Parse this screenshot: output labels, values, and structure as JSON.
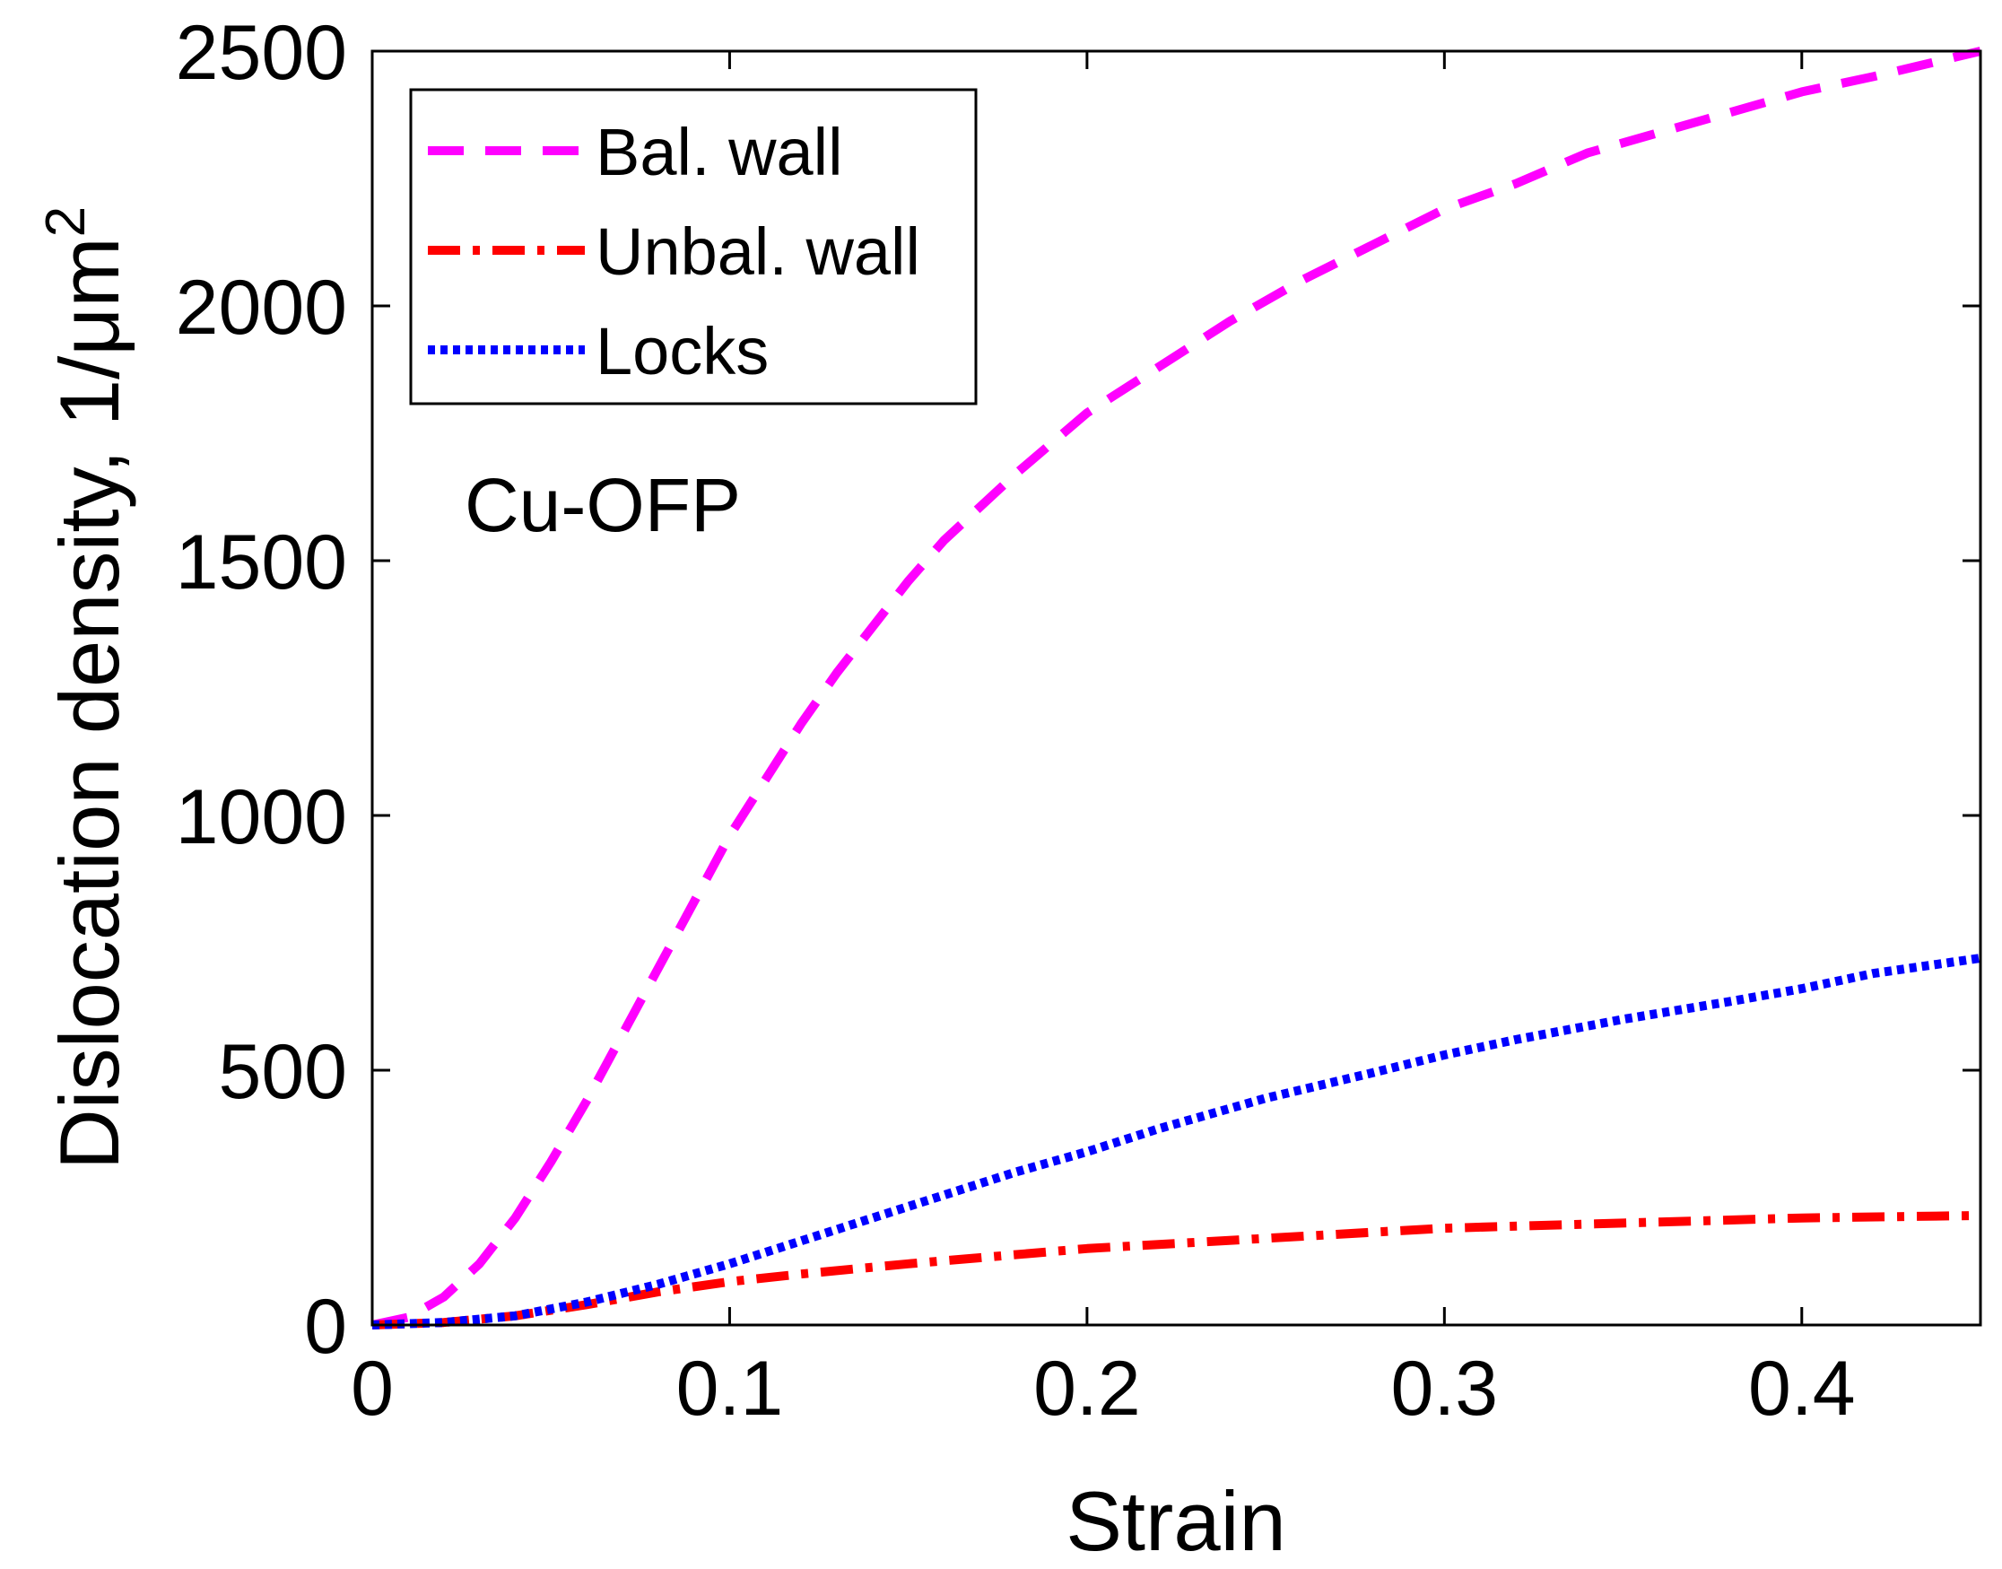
{
  "chart_data": {
    "type": "line",
    "title": "",
    "xlabel": "Strain",
    "ylabel": "Dislocation density,  1/μm",
    "ylabel_superscript": "2",
    "xlim": [
      0,
      0.45
    ],
    "ylim": [
      0,
      2500
    ],
    "grid": false,
    "xticks": [
      0,
      0.1,
      0.2,
      0.3,
      0.4
    ],
    "xtick_labels": [
      "0",
      "0.1",
      "0.2",
      "0.3",
      "0.4"
    ],
    "yticks": [
      0,
      500,
      1000,
      1500,
      2000,
      2500
    ],
    "ytick_labels": [
      "0",
      "500",
      "1000",
      "1500",
      "2000",
      "2500"
    ],
    "legend_position": "top-left",
    "annotation": "Cu-OFP",
    "series": [
      {
        "name": "Bal. wall",
        "color": "#ff00ff",
        "style": "dashed",
        "x": [
          0,
          0.01,
          0.02,
          0.03,
          0.04,
          0.05,
          0.06,
          0.07,
          0.08,
          0.09,
          0.1,
          0.11,
          0.12,
          0.13,
          0.14,
          0.15,
          0.16,
          0.18,
          0.2,
          0.22,
          0.24,
          0.26,
          0.28,
          0.3,
          0.32,
          0.34,
          0.36,
          0.38,
          0.4,
          0.42,
          0.45
        ],
        "y": [
          0,
          15,
          55,
          120,
          210,
          320,
          440,
          570,
          700,
          830,
          960,
          1070,
          1180,
          1280,
          1370,
          1460,
          1540,
          1670,
          1790,
          1880,
          1970,
          2050,
          2120,
          2190,
          2240,
          2300,
          2340,
          2380,
          2420,
          2450,
          2500
        ]
      },
      {
        "name": "Unbal. wall",
        "color": "#ff0000",
        "style": "dashdot",
        "x": [
          0,
          0.02,
          0.04,
          0.06,
          0.08,
          0.1,
          0.12,
          0.15,
          0.2,
          0.25,
          0.3,
          0.35,
          0.4,
          0.45
        ],
        "y": [
          0,
          5,
          18,
          40,
          65,
          85,
          100,
          120,
          150,
          170,
          190,
          200,
          210,
          215
        ]
      },
      {
        "name": "Locks",
        "color": "#0000ff",
        "style": "dotted",
        "x": [
          0,
          0.02,
          0.04,
          0.06,
          0.08,
          0.1,
          0.12,
          0.14,
          0.16,
          0.18,
          0.2,
          0.22,
          0.25,
          0.28,
          0.3,
          0.32,
          0.35,
          0.38,
          0.4,
          0.42,
          0.45
        ],
        "y": [
          0,
          5,
          18,
          45,
          80,
          120,
          165,
          210,
          255,
          300,
          340,
          385,
          445,
          495,
          530,
          560,
          600,
          635,
          660,
          690,
          720
        ]
      }
    ]
  }
}
